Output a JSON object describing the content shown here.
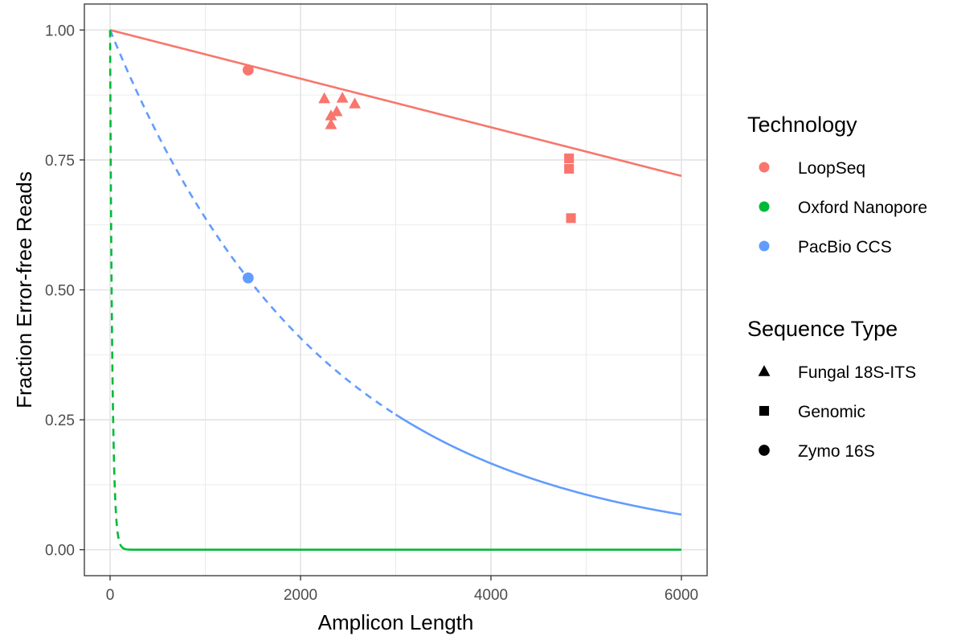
{
  "chart_data": {
    "type": "scatter",
    "xlabel": "Amplicon Length",
    "ylabel": "Fraction Error-free Reads",
    "xlim": [
      -270,
      6270
    ],
    "ylim": [
      -0.05,
      1.05
    ],
    "xticks": [
      0,
      2000,
      4000,
      6000
    ],
    "xtick_labels": [
      "0",
      "2000",
      "4000",
      "6000"
    ],
    "xticks_minor": [
      1000,
      3000,
      5000
    ],
    "yticks": [
      0,
      0.25,
      0.5,
      0.75,
      1.0
    ],
    "ytick_labels": [
      "0.00",
      "0.25",
      "0.50",
      "0.75",
      "1.00"
    ],
    "yticks_minor": [
      0.125,
      0.375,
      0.625,
      0.875
    ],
    "grid": true,
    "legend_position": "right",
    "technology_legend": {
      "title": "Technology",
      "entries": [
        {
          "label": "LoopSeq",
          "color": "#F8766D"
        },
        {
          "label": "Oxford Nanopore",
          "color": "#00BA38"
        },
        {
          "label": "PacBio CCS",
          "color": "#619CFF"
        }
      ]
    },
    "sequence_type_legend": {
      "title": "Sequence Type",
      "entries": [
        {
          "label": "Fungal 18S-ITS",
          "shape": "triangle"
        },
        {
          "label": "Genomic",
          "shape": "square"
        },
        {
          "label": "Zymo 16S",
          "shape": "circle"
        }
      ]
    },
    "curves": [
      {
        "technology": "LoopSeq",
        "color": "#F8766D",
        "model": "1 - 0.0000468*x",
        "x_min": 0,
        "x_max": 6000,
        "x_dash_until": 0
      },
      {
        "technology": "PacBio CCS",
        "color": "#619CFF",
        "model": "exp(-0.000449*x)",
        "x_min": 0,
        "x_max": 6000,
        "x_dash_until": 3000
      },
      {
        "technology": "Oxford Nanopore",
        "color": "#00BA38",
        "model": "exp(-0.043*x)",
        "x_min": 0,
        "x_max": 6000,
        "x_dash_until": 120
      }
    ],
    "points": [
      {
        "technology": "LoopSeq",
        "sequence_type": "Zymo 16S",
        "x": 1450,
        "y": 0.923
      },
      {
        "technology": "PacBio CCS",
        "sequence_type": "Zymo 16S",
        "x": 1450,
        "y": 0.523
      },
      {
        "technology": "LoopSeq",
        "sequence_type": "Fungal 18S-ITS",
        "x": 2250,
        "y": 0.868
      },
      {
        "technology": "LoopSeq",
        "sequence_type": "Fungal 18S-ITS",
        "x": 2440,
        "y": 0.869
      },
      {
        "technology": "LoopSeq",
        "sequence_type": "Fungal 18S-ITS",
        "x": 2570,
        "y": 0.858
      },
      {
        "technology": "LoopSeq",
        "sequence_type": "Fungal 18S-ITS",
        "x": 2380,
        "y": 0.843
      },
      {
        "technology": "LoopSeq",
        "sequence_type": "Fungal 18S-ITS",
        "x": 2320,
        "y": 0.835
      },
      {
        "technology": "LoopSeq",
        "sequence_type": "Fungal 18S-ITS",
        "x": 2320,
        "y": 0.818
      },
      {
        "technology": "LoopSeq",
        "sequence_type": "Genomic",
        "x": 4820,
        "y": 0.753
      },
      {
        "technology": "LoopSeq",
        "sequence_type": "Genomic",
        "x": 4820,
        "y": 0.733
      },
      {
        "technology": "LoopSeq",
        "sequence_type": "Genomic",
        "x": 4840,
        "y": 0.638
      }
    ]
  }
}
